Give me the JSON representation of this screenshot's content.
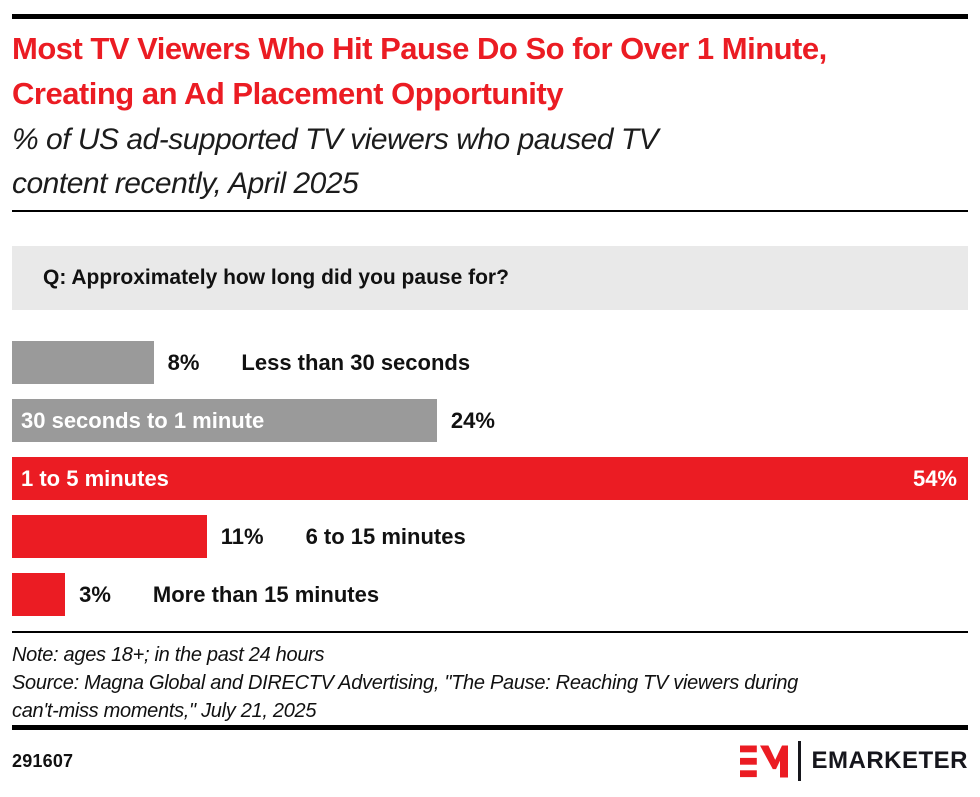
{
  "header": {
    "title": "Most TV Viewers Who Hit Pause Do So for Over 1 Minute, Creating an Ad Placement Opportunity",
    "subtitle": "% of US ad-supported TV viewers who paused TV content recently, April 2025"
  },
  "question": "Q: Approximately how long did you pause for?",
  "chart_data": {
    "type": "bar",
    "orientation": "horizontal",
    "title": "Q: Approximately how long did you pause for?",
    "categories": [
      "Less than 30 seconds",
      "30 seconds to 1 minute",
      "1 to 5 minutes",
      "6 to 15 minutes",
      "More than 15 minutes"
    ],
    "values": [
      8,
      24,
      54,
      11,
      3
    ],
    "unit": "%",
    "xlim": [
      0,
      54
    ],
    "legend": "none",
    "grid": false,
    "bars": [
      {
        "label": "Less than 30 seconds",
        "value": 8,
        "display": "8%",
        "color": "#9A9A9A",
        "text_layout": "outside"
      },
      {
        "label": "30 seconds to 1 minute",
        "value": 24,
        "display": "24%",
        "color": "#9A9A9A",
        "text_layout": "label-inside"
      },
      {
        "label": "1 to 5 minutes",
        "value": 54,
        "display": "54%",
        "color": "#EB1C23",
        "text_layout": "inside-both"
      },
      {
        "label": "6 to 15 minutes",
        "value": 11,
        "display": "11%",
        "color": "#EB1C23",
        "text_layout": "outside"
      },
      {
        "label": "More than 15 minutes",
        "value": 3,
        "display": "3%",
        "color": "#EB1C23",
        "text_layout": "outside"
      }
    ]
  },
  "footnote": {
    "note": "Note: ages 18+; in the past 24 hours",
    "source": "Source: Magna Global and DIRECTV Advertising, \"The Pause: Reaching TV viewers during can't-miss moments,\" July 21, 2025"
  },
  "footer": {
    "chart_id": "291607",
    "brand": "EMARKETER"
  },
  "colors": {
    "accent_red": "#EB1C23",
    "bar_gray": "#9A9A9A",
    "question_bg": "#E9E9E9",
    "text": "#111111"
  }
}
